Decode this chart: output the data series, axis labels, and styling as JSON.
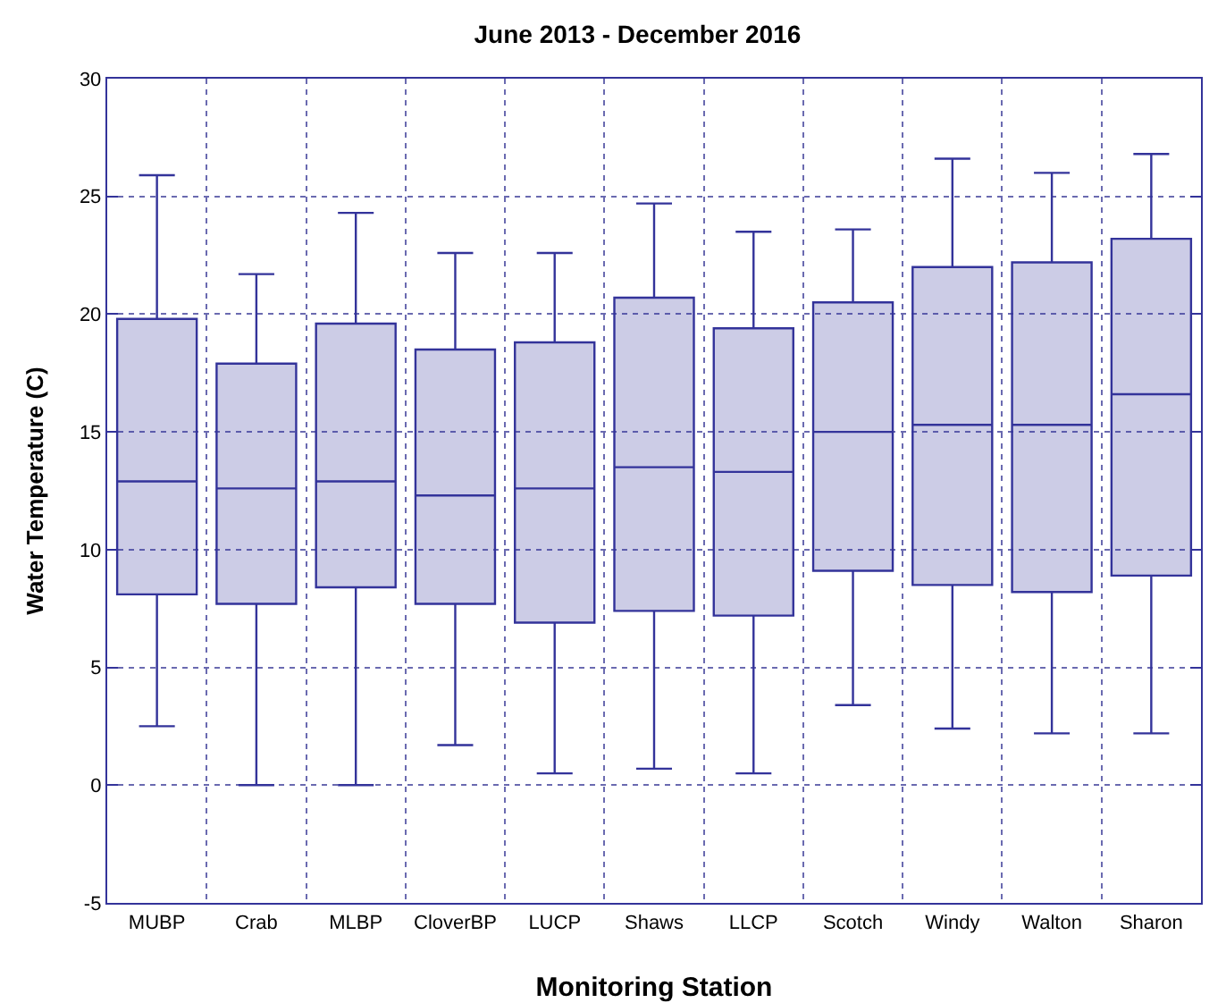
{
  "chart_data": {
    "type": "box",
    "title": "June 2013 - December 2016",
    "xlabel": "Monitoring Station",
    "ylabel": "Water Temperature (C)",
    "categories": [
      "MUBP",
      "Crab",
      "MLBP",
      "CloverBP",
      "LUCP",
      "Shaws",
      "LLCP",
      "Scotch",
      "Windy",
      "Walton",
      "Sharon"
    ],
    "series": [
      {
        "color": "#33339a",
        "boxes": [
          {
            "low": 2.5,
            "q1": 8.1,
            "median": 12.9,
            "q3": 19.8,
            "high": 25.9
          },
          {
            "low": 0,
            "q1": 7.7,
            "median": 12.6,
            "q3": 17.9,
            "high": 21.7
          },
          {
            "low": 0,
            "q1": 8.4,
            "median": 12.9,
            "q3": 19.6,
            "high": 24.3
          },
          {
            "low": 1.7,
            "q1": 7.7,
            "median": 12.3,
            "q3": 18.5,
            "high": 22.6
          },
          {
            "low": 0.5,
            "q1": 6.9,
            "median": 12.6,
            "q3": 18.8,
            "high": 22.6
          },
          {
            "low": 0.7,
            "q1": 7.4,
            "median": 13.5,
            "q3": 20.7,
            "high": 24.7
          },
          {
            "low": 0.5,
            "q1": 7.2,
            "median": 13.3,
            "q3": 19.4,
            "high": 23.5
          },
          {
            "low": 3.4,
            "q1": 9.1,
            "median": 15.0,
            "q3": 20.5,
            "high": 23.6
          },
          {
            "low": 2.4,
            "q1": 8.5,
            "median": 15.3,
            "q3": 22.0,
            "high": 26.6
          },
          {
            "low": 2.2,
            "q1": 8.2,
            "median": 15.3,
            "q3": 22.2,
            "high": 26.0
          },
          {
            "low": 2.2,
            "q1": 8.9,
            "median": 16.6,
            "q3": 23.2,
            "high": 26.8
          }
        ]
      }
    ],
    "ylim": [
      -5,
      30
    ],
    "yticks": [
      -5,
      0,
      5,
      10,
      15,
      20,
      25,
      30
    ],
    "grid": true
  }
}
